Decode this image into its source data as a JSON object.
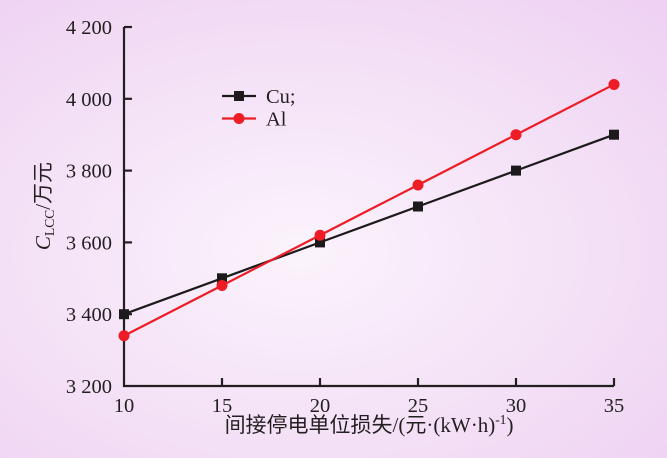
{
  "chart_data": {
    "type": "line",
    "x": [
      10,
      15,
      20,
      25,
      30,
      35
    ],
    "series": [
      {
        "id": "cu",
        "name": "Cu;",
        "values": [
          3400,
          3500,
          3600,
          3700,
          3800,
          3900
        ],
        "color": "#1c1a1b",
        "marker": "square"
      },
      {
        "id": "al",
        "name": "Al",
        "values": [
          3340,
          3480,
          3620,
          3760,
          3900,
          4040
        ],
        "color": "#ee1c25",
        "marker": "circle"
      }
    ],
    "title": "",
    "xlabel": "间接停电单位损失/(元·(kW·h)⁻¹)",
    "ylabel": "C_LCC/万元",
    "xlim": [
      10,
      35
    ],
    "ylim": [
      3200,
      4200
    ],
    "x_ticks": [
      10,
      15,
      20,
      25,
      30,
      35
    ],
    "x_tick_labels": [
      "10",
      "15",
      "20",
      "25",
      "30",
      "35"
    ],
    "y_ticks": [
      3200,
      3400,
      3600,
      3800,
      4000,
      4200
    ],
    "y_tick_labels": [
      "3 200",
      "3 400",
      "3 600",
      "3 800",
      "4 000",
      "4 200"
    ],
    "grid": false,
    "legend_position": "upper-left-inside"
  },
  "labels": {
    "xlabel_parts": [
      {
        "text": "间接停电单位损失/(元·(kW·h)"
      },
      {
        "text": "-1",
        "sup": true
      },
      {
        "text": ")"
      }
    ],
    "ylabel_parts": [
      {
        "text": "C",
        "italic": true
      },
      {
        "text": "LCC",
        "sub": true
      },
      {
        "text": "/万元"
      }
    ]
  },
  "colors": {
    "ink": "#231f20",
    "cu_line": "#1c1a1b",
    "al_line": "#ee1c25",
    "background": {
      "center": "#fbf3fc",
      "mid": "#f2dcf5",
      "edge": "#e9bef0"
    }
  }
}
